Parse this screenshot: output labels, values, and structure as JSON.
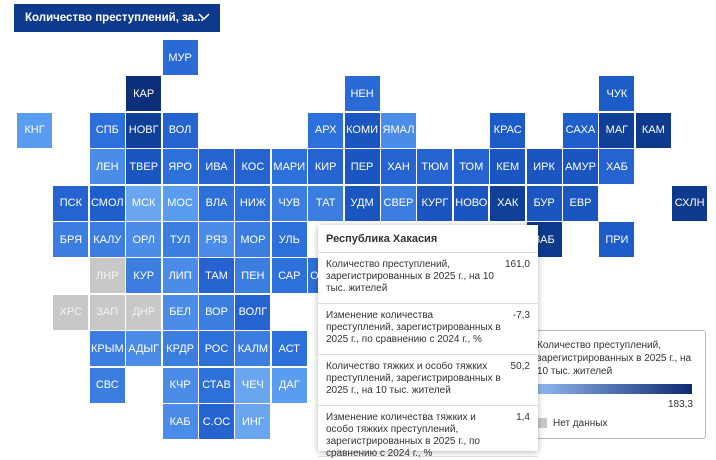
{
  "dropdown": {
    "label": "Количество преступлений, за..."
  },
  "tiles": [
    {
      "label": "МУР",
      "color": "#2a6ad6"
    },
    {
      "label": "КАР",
      "color": "#0b2f7a"
    },
    {
      "label": "НЕН",
      "color": "#2a6ad6"
    },
    {
      "label": "ЧУК",
      "color": "#1d5cc8"
    },
    {
      "label": "КНГ",
      "color": "#5a9cf0"
    },
    {
      "label": "СПБ",
      "color": "#2e70da"
    },
    {
      "label": "НОВГ",
      "color": "#0f3f96"
    },
    {
      "label": "ВОЛ",
      "color": "#2563d0"
    },
    {
      "label": "АРХ",
      "color": "#2e70da"
    },
    {
      "label": "КОМИ",
      "color": "#1a55c0"
    },
    {
      "label": "ЯМАЛ",
      "color": "#4a8ce8"
    },
    {
      "label": "КРАС",
      "color": "#1d5cc8"
    },
    {
      "label": "САХА",
      "color": "#1f5fcc"
    },
    {
      "label": "МАГ",
      "color": "#0f3f96"
    },
    {
      "label": "КАМ",
      "color": "#0d3a8c"
    },
    {
      "label": "ЛЕН",
      "color": "#4a8ce8"
    },
    {
      "label": "ТВЕР",
      "color": "#1a55c0"
    },
    {
      "label": "ЯРО",
      "color": "#2e70da"
    },
    {
      "label": "ИВА",
      "color": "#2563d0"
    },
    {
      "label": "КОС",
      "color": "#2563d0"
    },
    {
      "label": "МАРИ",
      "color": "#2e70da"
    },
    {
      "label": "КИР",
      "color": "#2563d0"
    },
    {
      "label": "ПЕР",
      "color": "#1a55c0"
    },
    {
      "label": "ХАН",
      "color": "#2563d0"
    },
    {
      "label": "ТЮМ",
      "color": "#2563d0"
    },
    {
      "label": "ТОМ",
      "color": "#2563d0"
    },
    {
      "label": "КЕМ",
      "color": "#1a55c0"
    },
    {
      "label": "ИРК",
      "color": "#1a55c0"
    },
    {
      "label": "АМУР",
      "color": "#1a55c0"
    },
    {
      "label": "ХАБ",
      "color": "#2563d0"
    },
    {
      "label": "ПСК",
      "color": "#2563d0"
    },
    {
      "label": "СМОЛ",
      "color": "#1f5fcc"
    },
    {
      "label": "МСК",
      "color": "#6aa6f0"
    },
    {
      "label": "МОС",
      "color": "#5a9cf0"
    },
    {
      "label": "ВЛА",
      "color": "#2e70da"
    },
    {
      "label": "НИЖ",
      "color": "#2e70da"
    },
    {
      "label": "ЧУВ",
      "color": "#3b7ee0"
    },
    {
      "label": "ТАТ",
      "color": "#3b7ee0"
    },
    {
      "label": "УДМ",
      "color": "#1a55c0"
    },
    {
      "label": "СВЕР",
      "color": "#3b7ee0"
    },
    {
      "label": "КУРГ",
      "color": "#1a55c0"
    },
    {
      "label": "НОВО",
      "color": "#1a55c0"
    },
    {
      "label": "ХАК",
      "color": "#0f3f96"
    },
    {
      "label": "БУР",
      "color": "#1a55c0"
    },
    {
      "label": "ЕВР",
      "color": "#1a55c0"
    },
    {
      "label": "СХЛН",
      "color": "#0d3a8c"
    },
    {
      "label": "БРЯ",
      "color": "#3b7ee0"
    },
    {
      "label": "КАЛУ",
      "color": "#3b7ee0"
    },
    {
      "label": "ОРЛ",
      "color": "#4a8ce8"
    },
    {
      "label": "ТУЛ",
      "color": "#3b7ee0"
    },
    {
      "label": "РЯЗ",
      "color": "#4a8ce8"
    },
    {
      "label": "МОР",
      "color": "#3b7ee0"
    },
    {
      "label": "УЛЬ",
      "color": "#2e70da"
    },
    {
      "label": "ЗАБ",
      "color": "#0d3a8c"
    },
    {
      "label": "ПРИ",
      "color": "#1d5cc8"
    },
    {
      "label": "ЛНР",
      "color": "#c8c8c8"
    },
    {
      "label": "КУР",
      "color": "#3b7ee0"
    },
    {
      "label": "ЛИП",
      "color": "#4a8ce8"
    },
    {
      "label": "ТАМ",
      "color": "#2563d0"
    },
    {
      "label": "ПЕН",
      "color": "#3b7ee0"
    },
    {
      "label": "САР",
      "color": "#2e70da"
    },
    {
      "label": "ОРЕН",
      "color": "#2e70da"
    },
    {
      "label": "ХРС",
      "color": "#c8c8c8"
    },
    {
      "label": "ЗАП",
      "color": "#c8c8c8"
    },
    {
      "label": "ДНР",
      "color": "#c8c8c8"
    },
    {
      "label": "БЕЛ",
      "color": "#4a8ce8"
    },
    {
      "label": "ВОР",
      "color": "#3b7ee0"
    },
    {
      "label": "ВОЛГ",
      "color": "#2563d0"
    },
    {
      "label": "КРЫМ",
      "color": "#3b7ee0"
    },
    {
      "label": "АДЫГ",
      "color": "#4a8ce8"
    },
    {
      "label": "КРДР",
      "color": "#3b7ee0"
    },
    {
      "label": "РОС",
      "color": "#2e70da"
    },
    {
      "label": "КАЛМ",
      "color": "#3b7ee0"
    },
    {
      "label": "АСТ",
      "color": "#2e70da"
    },
    {
      "label": "СВС",
      "color": "#3b7ee0"
    },
    {
      "label": "КЧР",
      "color": "#4a8ce8"
    },
    {
      "label": "СТАВ",
      "color": "#2e70da"
    },
    {
      "label": "ЧЕЧ",
      "color": "#6aa6f0"
    },
    {
      "label": "ДАГ",
      "color": "#5a9cf0"
    },
    {
      "label": "КАБ",
      "color": "#4a8ce8"
    },
    {
      "label": "С.ОС",
      "color": "#2563d0"
    },
    {
      "label": "ИНГ",
      "color": "#6aa6f0"
    }
  ],
  "legend": {
    "title": "Количество преступлений, зарегистрированных в 2025 г., на 10 тыс. жителей",
    "max": "183,3",
    "no_data": "Нет данных"
  },
  "tooltip": {
    "title": "Республика Хакасия",
    "rows": [
      [
        "Количество преступлений, зарегистрированных в 2025 г., на 10 тыс. жителей",
        "161,0"
      ],
      [
        "Изменение количества преступлений, зарегистрированных в 2025 г., по сравнению с 2024 г., %",
        "-7,3"
      ],
      [
        "Количество тяжких и особо тяжких преступлений, зарегистрированных в 2025 г., на 10 тыс. жителей",
        "50,2"
      ],
      [
        "Изменение количества тяжких и особо тяжких преступлений, зарегистрированных в 2025 г., по сравнению с 2024 г., %",
        "1,4"
      ]
    ]
  }
}
